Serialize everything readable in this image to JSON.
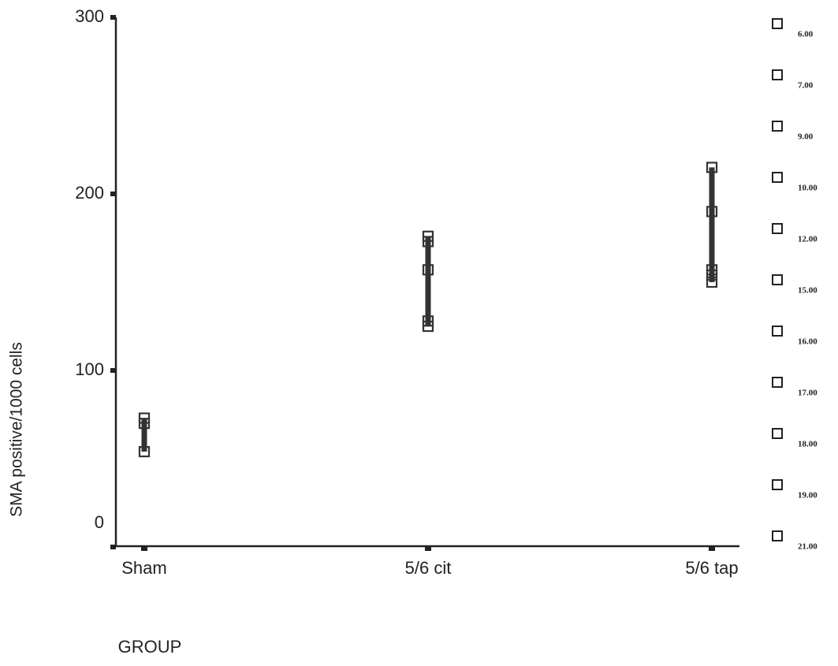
{
  "chart_data": {
    "type": "scatter",
    "x_label": "GROUP",
    "y_label": "SMA positive/1000 cells",
    "categories": [
      "Sham",
      "5/6 cit",
      "5/6 tap"
    ],
    "values": [
      [
        73,
        70,
        54
      ],
      [
        176,
        173,
        157,
        128,
        125
      ],
      [
        215,
        190,
        157,
        154,
        150
      ]
    ],
    "color": "#333333",
    "ylim": [
      0,
      300
    ],
    "yticks": [
      0,
      100,
      200,
      300
    ],
    "legend_labels": [
      "6.00",
      "7.00",
      "9.00",
      "10.00",
      "12.00",
      "15.00",
      "16.00",
      "17.00",
      "18.00",
      "19.00",
      "21.00"
    ],
    "legend": "right"
  }
}
